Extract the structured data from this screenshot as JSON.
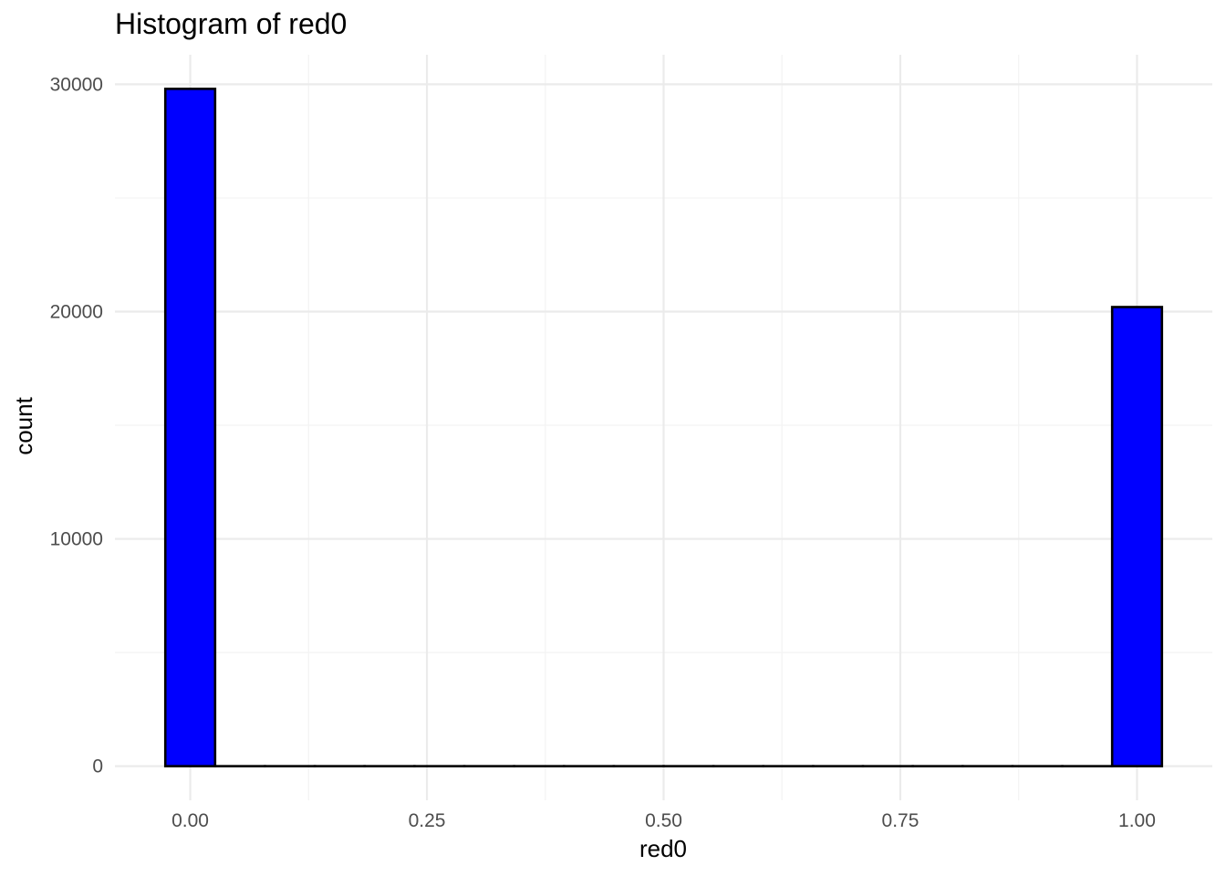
{
  "chart_data": {
    "type": "bar",
    "title": "Histogram of red0",
    "xlabel": "red0",
    "ylabel": "count",
    "x_ticks": [
      "0.00",
      "0.25",
      "0.50",
      "0.75",
      "1.00"
    ],
    "x_tick_values": [
      0,
      0.25,
      0.5,
      0.75,
      1
    ],
    "y_ticks": [
      "0",
      "10000",
      "20000",
      "30000"
    ],
    "y_tick_values": [
      0,
      10000,
      20000,
      30000
    ],
    "xlim": [
      -0.0795,
      1.0795
    ],
    "ylim": [
      -1500,
      31300
    ],
    "bin_width": 0.0526,
    "bins": [
      {
        "x": 0.0,
        "count": 29800
      },
      {
        "x": 0.0526,
        "count": 0
      },
      {
        "x": 0.1053,
        "count": 0
      },
      {
        "x": 0.1579,
        "count": 0
      },
      {
        "x": 0.2105,
        "count": 0
      },
      {
        "x": 0.2632,
        "count": 0
      },
      {
        "x": 0.3158,
        "count": 0
      },
      {
        "x": 0.3684,
        "count": 0
      },
      {
        "x": 0.4211,
        "count": 0
      },
      {
        "x": 0.4737,
        "count": 0
      },
      {
        "x": 0.5263,
        "count": 0
      },
      {
        "x": 0.5789,
        "count": 0
      },
      {
        "x": 0.6316,
        "count": 0
      },
      {
        "x": 0.6842,
        "count": 0
      },
      {
        "x": 0.7368,
        "count": 0
      },
      {
        "x": 0.7895,
        "count": 0
      },
      {
        "x": 0.8421,
        "count": 0
      },
      {
        "x": 0.8947,
        "count": 0
      },
      {
        "x": 0.9474,
        "count": 0
      },
      {
        "x": 1.0,
        "count": 20200
      }
    ],
    "grid": true,
    "legend": "none",
    "colors": {
      "fill": "#0000ff",
      "outline": "#000000",
      "grid_major": "#ebebeb",
      "grid_minor": "#f3f3f3"
    }
  }
}
